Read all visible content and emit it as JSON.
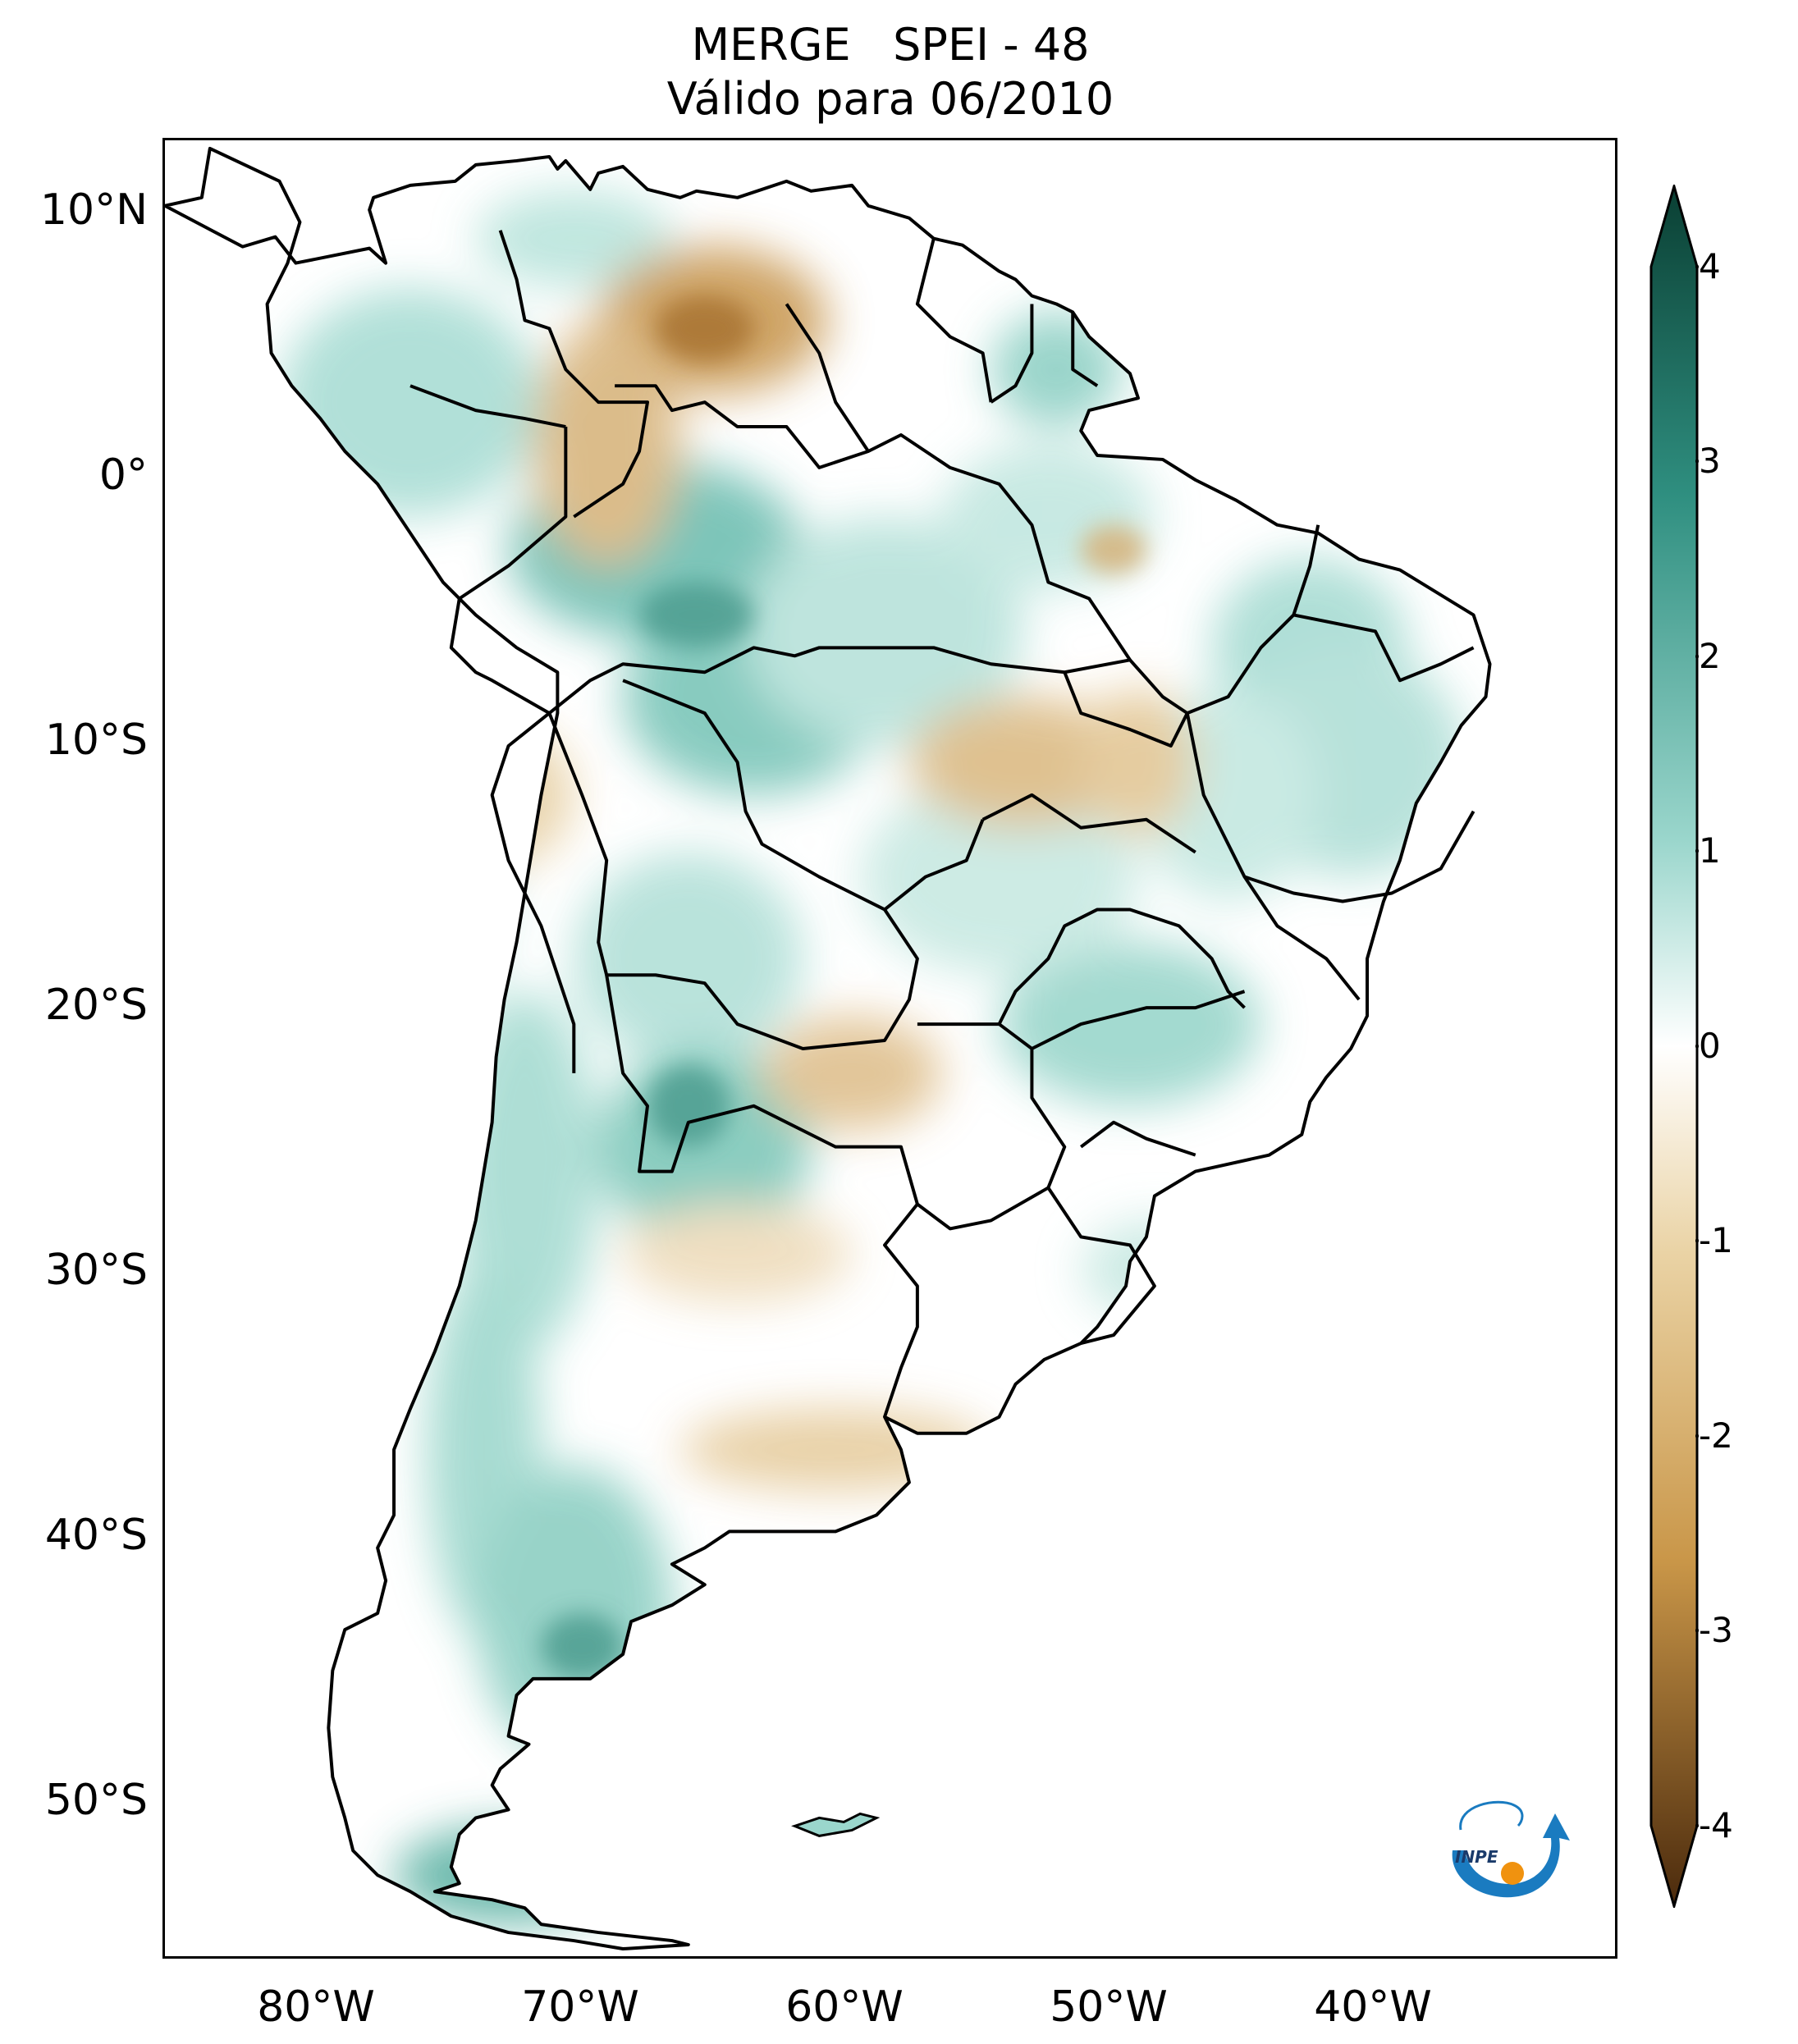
{
  "title": {
    "line1": "MERGE   SPEI - 48",
    "line2": "Válido para 06/2010"
  },
  "map": {
    "lat_labels": [
      "10°N",
      "0°",
      "10°S",
      "20°S",
      "30°S",
      "40°S",
      "50°S"
    ],
    "lon_labels": [
      "80°W",
      "70°W",
      "60°W",
      "50°W",
      "40°W"
    ],
    "lon_range": [
      -85,
      -30
    ],
    "lat_range": [
      -56,
      13
    ]
  },
  "colorbar": {
    "ticks": [
      "4",
      "3",
      "2",
      "1",
      "0",
      "-1",
      "-2",
      "-3",
      "-4"
    ],
    "range": [
      -4,
      4
    ],
    "colors": {
      "wet_high": "#0a3f33",
      "wet_mid": "#2f8f80",
      "wet_low": "#9ad6cc",
      "neutral": "#ffffff",
      "dry_low": "#ead3a5",
      "dry_mid": "#c99648",
      "dry_high": "#4b2a0c"
    }
  },
  "logo": {
    "text": "INPE",
    "icon": "inpe-logo-icon"
  }
}
